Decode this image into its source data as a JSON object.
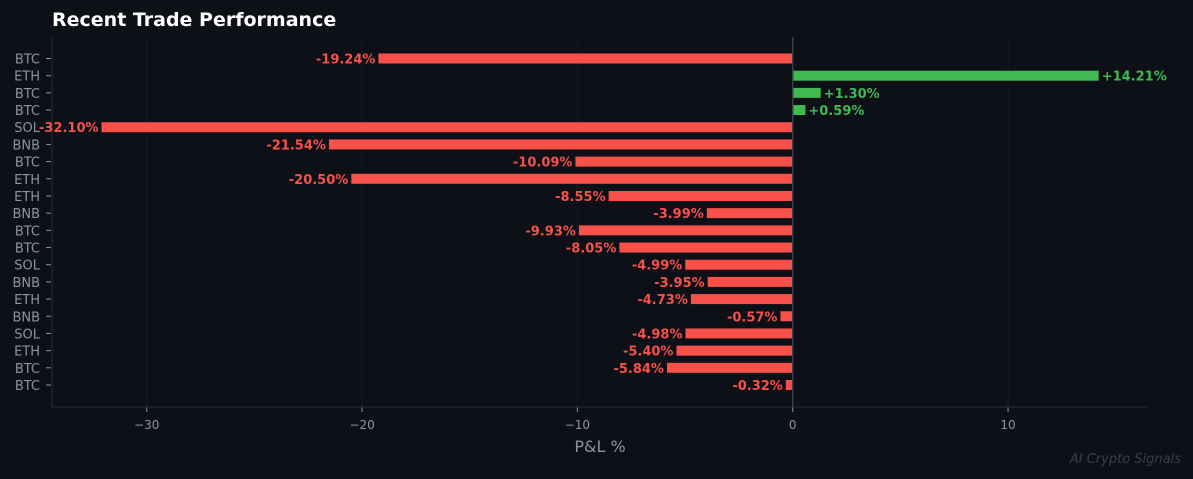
{
  "chart_data": {
    "type": "bar",
    "orientation": "horizontal",
    "title": "Recent Trade Performance",
    "xlabel": "P&L %",
    "ylabel": "",
    "xlim": [
      -34.4,
      16.5
    ],
    "xticks": [
      -30,
      -20,
      -10,
      0,
      10
    ],
    "xtick_labels": [
      "−30",
      "−20",
      "−10",
      "0",
      "10"
    ],
    "grid": "vertical, faint",
    "categories": [
      "BTC",
      "ETH",
      "BTC",
      "BTC",
      "SOL",
      "BNB",
      "BTC",
      "ETH",
      "ETH",
      "BNB",
      "BTC",
      "BTC",
      "SOL",
      "BNB",
      "ETH",
      "BNB",
      "SOL",
      "ETH",
      "BTC",
      "BTC"
    ],
    "values": [
      -19.24,
      14.21,
      1.3,
      0.59,
      -32.1,
      -21.54,
      -10.09,
      -20.5,
      -8.55,
      -3.99,
      -9.93,
      -8.05,
      -4.99,
      -3.95,
      -4.73,
      -0.57,
      -4.98,
      -5.4,
      -5.84,
      -0.32
    ],
    "data_labels": [
      "-19.24%",
      "+14.21%",
      "+1.30%",
      "+0.59%",
      "-32.10%",
      "-21.54%",
      "-10.09%",
      "-20.50%",
      "-8.55%",
      "-3.99%",
      "-9.93%",
      "-8.05%",
      "-4.99%",
      "-3.95%",
      "-4.73%",
      "-0.57%",
      "-4.98%",
      "-5.40%",
      "-5.84%",
      "-0.32%"
    ],
    "colors": {
      "positive": "#3fb950",
      "negative": "#f85149",
      "background": "#0d1017",
      "text": "#8b949e"
    }
  },
  "watermark": "AI Crypto Signals"
}
